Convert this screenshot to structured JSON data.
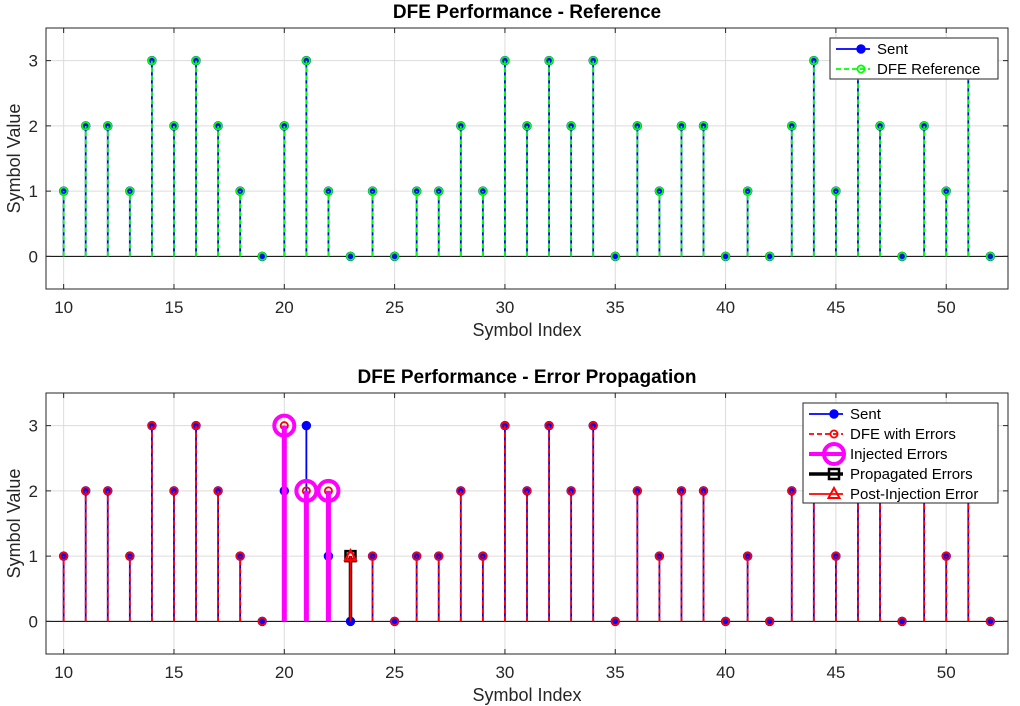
{
  "figure": {
    "background": "#ffffff"
  },
  "chart_data": [
    {
      "type": "stem",
      "title": "DFE Performance - Reference",
      "xlabel": "Symbol Index",
      "ylabel": "Symbol Value",
      "xlim": [
        9.2,
        52.8
      ],
      "ylim": [
        -0.5,
        3.5
      ],
      "xticks": [
        10,
        15,
        20,
        25,
        30,
        35,
        40,
        45,
        50
      ],
      "yticks": [
        0,
        1,
        2,
        3
      ],
      "grid": true,
      "legend_position": "top-right",
      "x": [
        10,
        11,
        12,
        13,
        14,
        15,
        16,
        17,
        18,
        19,
        20,
        21,
        22,
        23,
        24,
        25,
        26,
        27,
        28,
        29,
        30,
        31,
        32,
        33,
        34,
        35,
        36,
        37,
        38,
        39,
        40,
        41,
        42,
        43,
        44,
        45,
        46,
        47,
        48,
        49,
        50,
        51,
        52
      ],
      "series": [
        {
          "name": "Sent",
          "color": "#0000ff",
          "line": "solid",
          "marker": "filled-circle",
          "values": [
            1,
            2,
            2,
            1,
            3,
            2,
            3,
            2,
            1,
            0,
            2,
            3,
            1,
            0,
            1,
            0,
            1,
            1,
            2,
            1,
            3,
            2,
            3,
            2,
            3,
            0,
            2,
            1,
            2,
            2,
            0,
            1,
            0,
            2,
            3,
            1,
            3,
            2,
            0,
            2,
            1,
            3,
            0
          ]
        },
        {
          "name": "DFE Reference",
          "color": "#00ff00",
          "line": "dashed",
          "marker": "open-circle",
          "values": [
            1,
            2,
            2,
            1,
            3,
            2,
            3,
            2,
            1,
            0,
            2,
            3,
            1,
            0,
            1,
            0,
            1,
            1,
            2,
            1,
            3,
            2,
            3,
            2,
            3,
            0,
            2,
            1,
            2,
            2,
            0,
            1,
            0,
            2,
            3,
            1,
            3,
            2,
            0,
            2,
            1,
            3,
            0
          ]
        }
      ]
    },
    {
      "type": "stem",
      "title": "DFE Performance - Error Propagation",
      "xlabel": "Symbol Index",
      "ylabel": "Symbol Value",
      "xlim": [
        9.2,
        52.8
      ],
      "ylim": [
        -0.5,
        3.5
      ],
      "xticks": [
        10,
        15,
        20,
        25,
        30,
        35,
        40,
        45,
        50
      ],
      "yticks": [
        0,
        1,
        2,
        3
      ],
      "grid": true,
      "legend_position": "top-right",
      "x": [
        10,
        11,
        12,
        13,
        14,
        15,
        16,
        17,
        18,
        19,
        20,
        21,
        22,
        23,
        24,
        25,
        26,
        27,
        28,
        29,
        30,
        31,
        32,
        33,
        34,
        35,
        36,
        37,
        38,
        39,
        40,
        41,
        42,
        43,
        44,
        45,
        46,
        47,
        48,
        49,
        50,
        51,
        52
      ],
      "series": [
        {
          "name": "Sent",
          "color": "#0000ff",
          "line": "solid",
          "marker": "filled-circle",
          "values": [
            1,
            2,
            2,
            1,
            3,
            2,
            3,
            2,
            1,
            0,
            2,
            3,
            1,
            0,
            1,
            0,
            1,
            1,
            2,
            1,
            3,
            2,
            3,
            2,
            3,
            0,
            2,
            1,
            2,
            2,
            0,
            1,
            0,
            2,
            3,
            1,
            3,
            2,
            0,
            2,
            1,
            3,
            0
          ]
        },
        {
          "name": "DFE with Errors",
          "color": "#ff0000",
          "line": "dashed",
          "marker": "open-circle",
          "values": [
            1,
            2,
            2,
            1,
            3,
            2,
            3,
            2,
            1,
            0,
            3,
            2,
            2,
            1,
            1,
            0,
            1,
            1,
            2,
            1,
            3,
            2,
            3,
            2,
            3,
            0,
            2,
            1,
            2,
            2,
            0,
            1,
            0,
            2,
            3,
            1,
            3,
            2,
            0,
            2,
            1,
            3,
            0
          ]
        },
        {
          "name": "Injected Errors",
          "color": "#ff00ff",
          "line": "thick",
          "marker": "big-open-circle",
          "x": [
            20,
            21,
            22
          ],
          "values": [
            3,
            2,
            2
          ]
        },
        {
          "name": "Propagated Errors",
          "color": "#000000",
          "line": "thick",
          "marker": "open-square",
          "x": [
            23
          ],
          "values": [
            1
          ]
        },
        {
          "name": "Post-Injection Error",
          "color": "#ff0000",
          "line": "solid",
          "marker": "open-triangle",
          "x": [
            23
          ],
          "values": [
            1
          ]
        }
      ]
    }
  ]
}
